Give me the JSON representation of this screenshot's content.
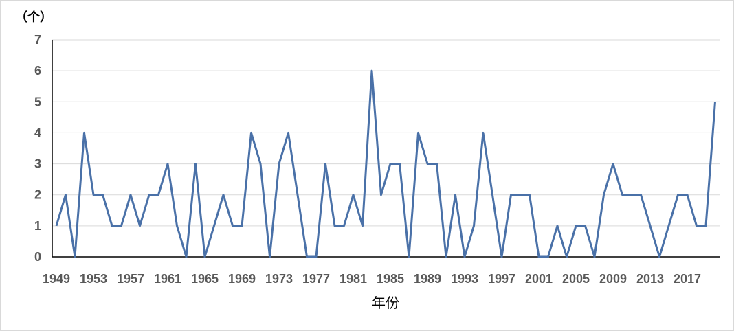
{
  "chart_data": {
    "type": "line",
    "ylabel": "（个）",
    "xlabel": "年份",
    "ylim": [
      0,
      7
    ],
    "yticks": [
      0,
      1,
      2,
      3,
      4,
      5,
      6,
      7
    ],
    "grid": "horizontal",
    "legend": "none",
    "colors": {
      "line": "#4a71a8",
      "grid": "#d9d9d9",
      "axis": "#000000"
    },
    "x_tick_labels": [
      "1949",
      "1953",
      "1957",
      "1961",
      "1965",
      "1969",
      "1973",
      "1977",
      "1981",
      "1985",
      "1989",
      "1993",
      "1997",
      "2001",
      "2005",
      "2009",
      "2013",
      "2017"
    ],
    "x": [
      1949,
      1950,
      1951,
      1952,
      1953,
      1954,
      1955,
      1956,
      1957,
      1958,
      1959,
      1960,
      1961,
      1962,
      1963,
      1964,
      1965,
      1966,
      1967,
      1968,
      1969,
      1970,
      1971,
      1972,
      1973,
      1974,
      1975,
      1976,
      1977,
      1978,
      1979,
      1980,
      1981,
      1982,
      1983,
      1984,
      1985,
      1986,
      1987,
      1988,
      1989,
      1990,
      1991,
      1992,
      1993,
      1994,
      1995,
      1996,
      1997,
      1998,
      1999,
      2000,
      2001,
      2002,
      2003,
      2004,
      2005,
      2006,
      2007,
      2008,
      2009,
      2010,
      2011,
      2012,
      2013,
      2014,
      2015,
      2016,
      2017,
      2018,
      2019,
      2020
    ],
    "values": [
      1,
      2,
      0,
      4,
      2,
      2,
      1,
      1,
      2,
      1,
      2,
      2,
      3,
      1,
      0,
      3,
      0,
      1,
      2,
      1,
      1,
      4,
      3,
      0,
      3,
      4,
      2,
      0,
      0,
      3,
      1,
      1,
      2,
      1,
      6,
      2,
      3,
      3,
      0,
      4,
      3,
      3,
      0,
      2,
      0,
      1,
      4,
      2,
      0,
      2,
      2,
      2,
      0,
      0,
      1,
      0,
      1,
      1,
      0,
      2,
      3,
      2,
      2,
      2,
      1,
      0,
      1,
      2,
      2,
      1,
      1,
      5
    ]
  }
}
